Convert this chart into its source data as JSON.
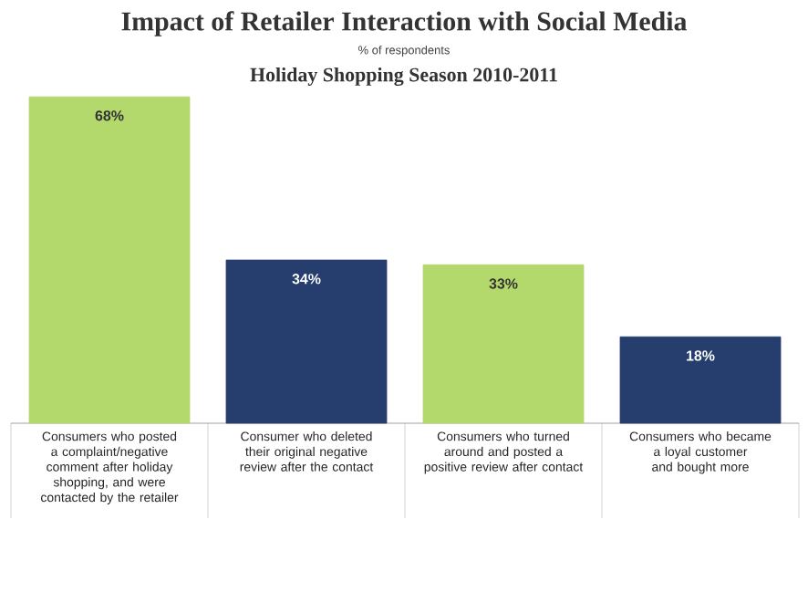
{
  "chart_data": {
    "type": "bar",
    "title": "Impact of Retailer Interaction with Social Media",
    "subtitle": "Holiday Shopping Season 2010-2011",
    "annotations": [
      "% of respondents"
    ],
    "categories": [
      "Consumers who posted a complaint/negative comment after holiday shopping, and were contacted by the retailer",
      "Consumer who deleted their original negative review after the contact",
      "Consumers who turned around and posted a positive review after contact",
      "Consumers who became a loyal customer and bought more"
    ],
    "values": [
      68,
      34,
      33,
      18
    ],
    "value_labels": [
      "68%",
      "34%",
      "33%",
      "18%"
    ],
    "colors": [
      "#b3d86c",
      "#263e6d",
      "#b3d86c",
      "#263e6d"
    ]
  }
}
